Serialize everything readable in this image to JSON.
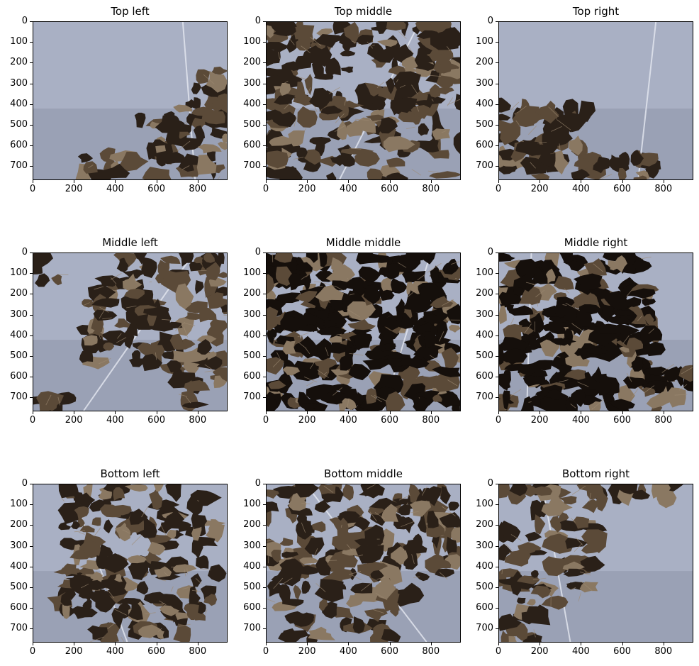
{
  "panels": [
    {
      "title": "Top left",
      "scene": "mostly-paper-lower-right-debris"
    },
    {
      "title": "Top middle",
      "scene": "dense-debris"
    },
    {
      "title": "Top right",
      "scene": "paper-with-debris-lower-left"
    },
    {
      "title": "Middle left",
      "scene": "debris-with-paper-left-bottom"
    },
    {
      "title": "Middle middle",
      "scene": "dark-dense-debris"
    },
    {
      "title": "Middle right",
      "scene": "dark-debris-paper-right"
    },
    {
      "title": "Bottom left",
      "scene": "debris-center-paper-sides"
    },
    {
      "title": "Bottom middle",
      "scene": "debris-top-paper-bottom-right"
    },
    {
      "title": "Bottom right",
      "scene": "debris-top-left-paper-rest"
    }
  ],
  "x_ticks": [
    "0",
    "200",
    "400",
    "600",
    "800"
  ],
  "y_ticks": [
    "0",
    "100",
    "200",
    "300",
    "400",
    "500",
    "600",
    "700"
  ],
  "x_extent": [
    0,
    945
  ],
  "y_extent": [
    0,
    768
  ],
  "colors": {
    "paper": "#a9b0c4",
    "paper_shadow": "#6e7486",
    "debris_dark": "#2a2018",
    "debris_mid": "#5b4a38",
    "debris_light": "#8a7862"
  }
}
